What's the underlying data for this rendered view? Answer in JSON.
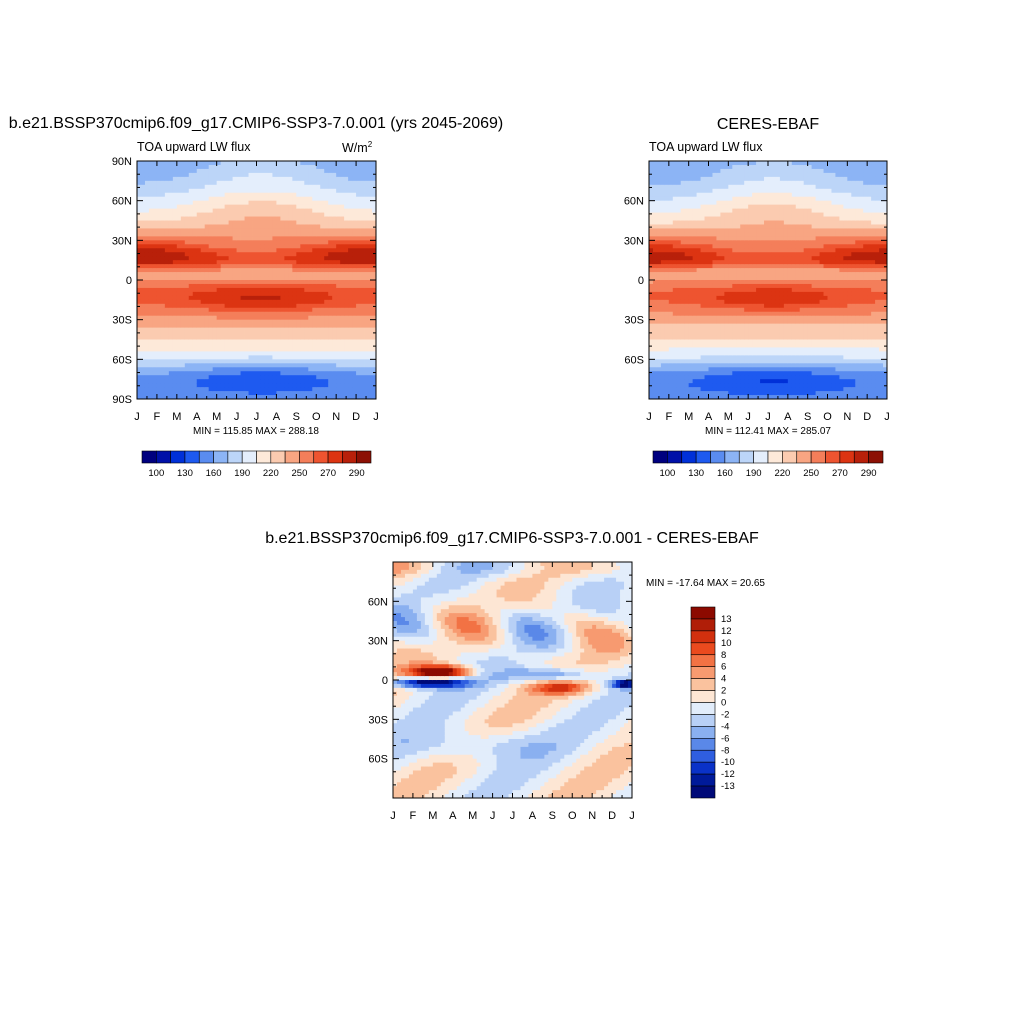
{
  "chart_data": [
    {
      "type": "heatmap",
      "title": "b.e21.BSSP370cmip6.f09_g17.CMIP6-SSP3-7.0.001 (yrs 2045-2069)",
      "subtitle": "TOA upward LW flux",
      "units": "W/m",
      "units_exp": "2",
      "x_ticks": [
        "J",
        "F",
        "M",
        "A",
        "M",
        "J",
        "J",
        "A",
        "S",
        "O",
        "N",
        "D",
        "J"
      ],
      "y_ticks": [
        "90N",
        "60N",
        "30N",
        "0",
        "30S",
        "60S",
        "90S"
      ],
      "ylim": [
        -90,
        90
      ],
      "stats": "MIN = 115.85 MAX = 288.18",
      "min": 115.85,
      "max": 288.18,
      "itcz_lat": 15,
      "sh_max_lat": -15,
      "colorbar_labels": [
        "100",
        "130",
        "160",
        "190",
        "220",
        "250",
        "270",
        "290"
      ]
    },
    {
      "type": "heatmap",
      "title": "CERES-EBAF",
      "subtitle": "TOA upward LW flux",
      "x_ticks": [
        "J",
        "F",
        "M",
        "A",
        "M",
        "J",
        "J",
        "A",
        "S",
        "O",
        "N",
        "D",
        "J"
      ],
      "y_ticks": [
        "60N",
        "30N",
        "0",
        "30S",
        "60S"
      ],
      "ylim": [
        -90,
        90
      ],
      "stats": "MIN = 112.41 MAX = 285.07",
      "min": 112.41,
      "max": 285.07,
      "itcz_lat": 15,
      "sh_max_lat": -15,
      "colorbar_labels": [
        "100",
        "130",
        "160",
        "190",
        "220",
        "250",
        "270",
        "290"
      ]
    },
    {
      "type": "heatmap",
      "title": "b.e21.BSSP370cmip6.f09_g17.CMIP6-SSP3-7.0.001 - CERES-EBAF",
      "x_ticks": [
        "J",
        "F",
        "M",
        "A",
        "M",
        "J",
        "J",
        "A",
        "S",
        "O",
        "N",
        "D",
        "J"
      ],
      "y_ticks": [
        "60N",
        "30N",
        "0",
        "30S",
        "60S"
      ],
      "ylim": [
        -90,
        90
      ],
      "stats": "MIN = -17.64 MAX =  20.65",
      "min": -17.64,
      "max": 20.65,
      "colorbar_labels": [
        "13",
        "12",
        "10",
        "8",
        "6",
        "4",
        "2",
        "0",
        "-2",
        "-4",
        "-6",
        "-8",
        "-10",
        "-12",
        "-13"
      ]
    }
  ],
  "colors": {
    "sequential": [
      "#00007f",
      "#0010a8",
      "#0030d8",
      "#1e5af0",
      "#5a8cf0",
      "#8cb4f5",
      "#bcd5f8",
      "#e4eefc",
      "#fde9d9",
      "#fbcbb0",
      "#f8a582",
      "#f47e5a",
      "#ee5430",
      "#dc3412",
      "#b8200a",
      "#8c1004",
      "#700000"
    ],
    "diverging": [
      "#8c0a00",
      "#b01e08",
      "#d2300e",
      "#ea4a1e",
      "#f27244",
      "#f79a70",
      "#fac29e",
      "#fde6d4",
      "#e2edfb",
      "#b8d0f6",
      "#8ab0f0",
      "#5a88e8",
      "#2f5ee0",
      "#0a32c8",
      "#001a9a",
      "#000a78"
    ]
  }
}
